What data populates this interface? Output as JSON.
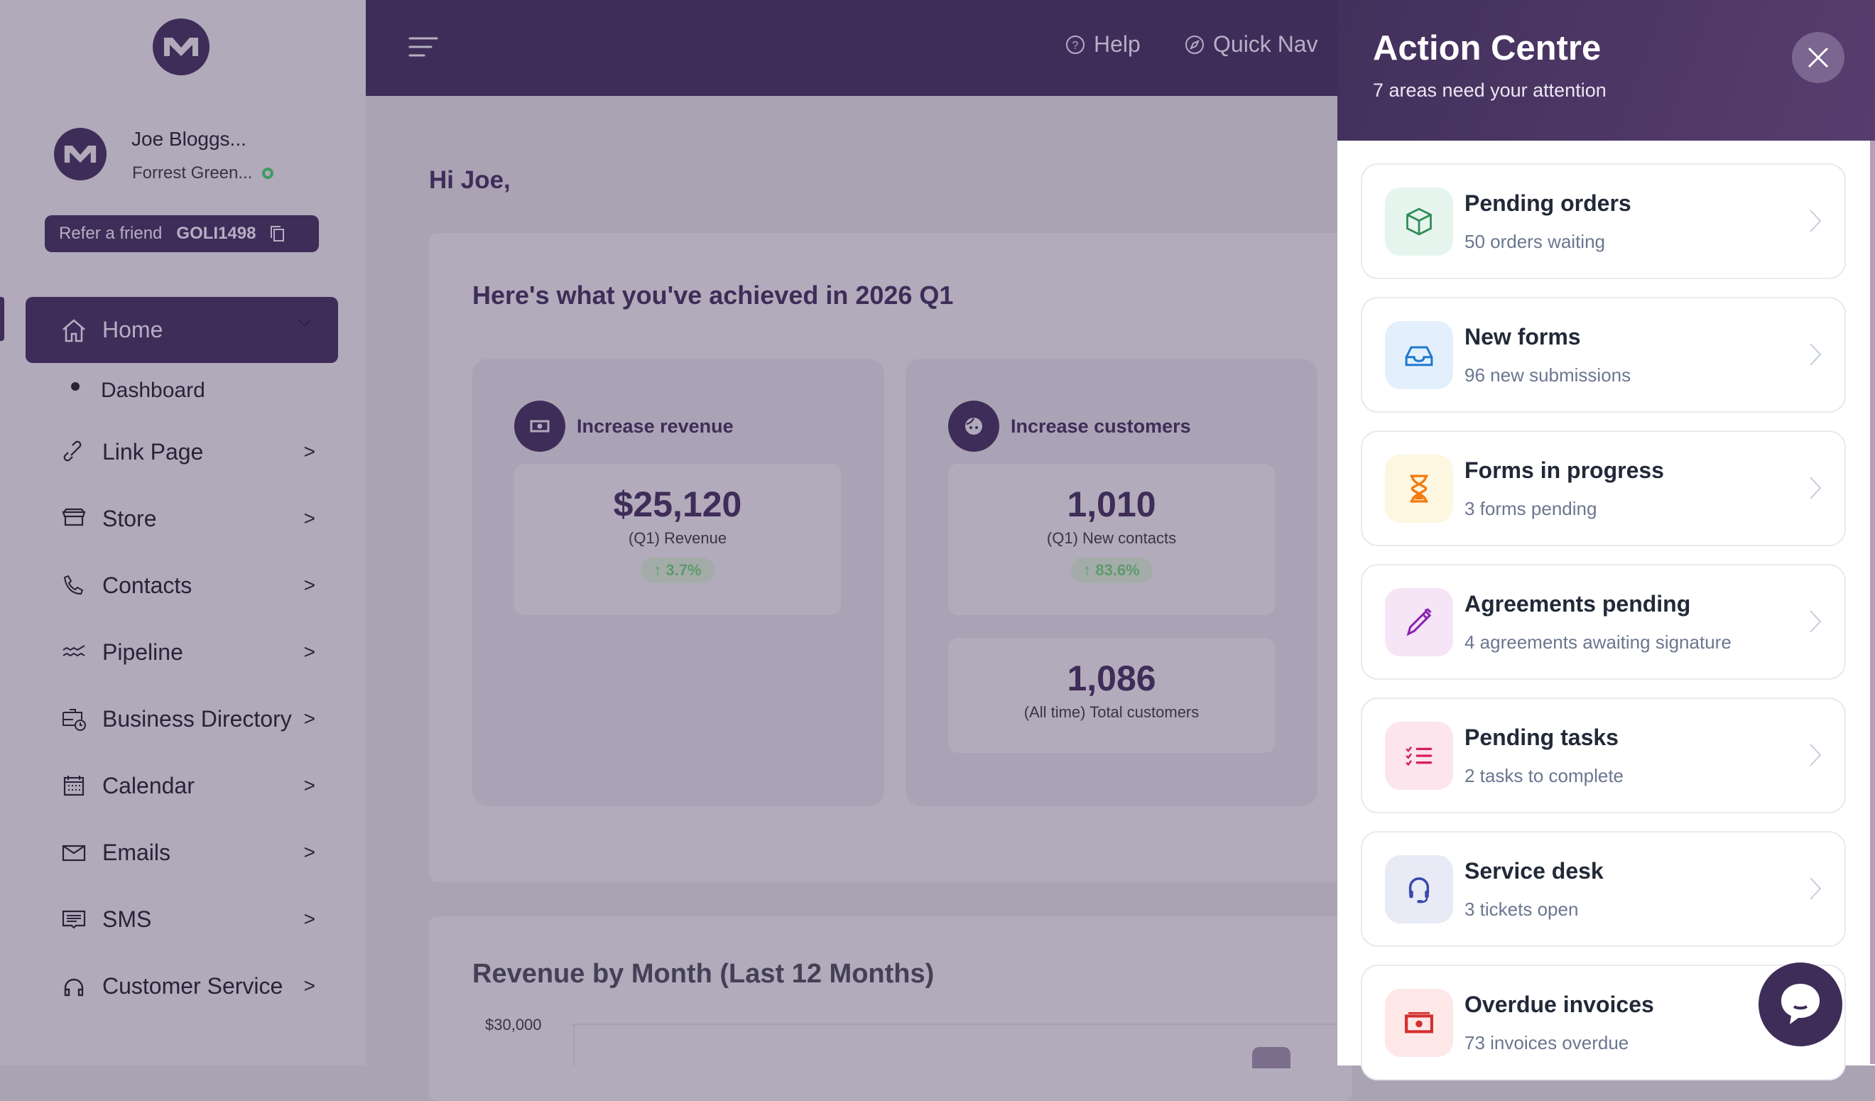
{
  "sidebar": {
    "user_name": "Joe Bloggs...",
    "user_sub": "Forrest Green...",
    "refer_label": "Refer a friend",
    "refer_code": "GOLI1498",
    "home_label": "Home",
    "dashboard_label": "Dashboard",
    "items": [
      {
        "label": "Link Page",
        "icon": "link-icon"
      },
      {
        "label": "Store",
        "icon": "store-icon"
      },
      {
        "label": "Contacts",
        "icon": "phone-icon"
      },
      {
        "label": "Pipeline",
        "icon": "pipeline-icon"
      },
      {
        "label": "Business Directory",
        "icon": "directory-icon"
      },
      {
        "label": "Calendar",
        "icon": "calendar-icon"
      },
      {
        "label": "Emails",
        "icon": "mail-icon"
      },
      {
        "label": "SMS",
        "icon": "sms-icon"
      },
      {
        "label": "Customer Service",
        "icon": "headphones-icon"
      }
    ],
    "chevron": ">"
  },
  "topbar": {
    "help_label": "Help",
    "quicknav_label": "Quick Nav"
  },
  "main": {
    "greeting": "Hi Joe,",
    "achieved_title": "Here's what you've achieved in 2026 Q1",
    "revenue": {
      "title": "Increase revenue",
      "value": "$25,120",
      "label": "(Q1) Revenue",
      "change": "↑ 3.7%"
    },
    "customers": {
      "title": "Increase customers",
      "new_value": "1,010",
      "new_label": "(Q1) New contacts",
      "change": "↑ 83.6%",
      "total_value": "1,086",
      "total_label": "(All time) Total customers"
    },
    "revenue_chart": {
      "title": "Revenue by Month (Last 12 Months)",
      "y_tick": "$30,000"
    }
  },
  "action_centre": {
    "title": "Action Centre",
    "subtitle": "7 areas need your attention",
    "items": [
      {
        "title": "Pending orders",
        "sub": "50 orders waiting",
        "icon": "box-icon",
        "bg": "#e6f4ee",
        "color": "#2f8a55"
      },
      {
        "title": "New forms",
        "sub": "96 new submissions",
        "icon": "inbox-icon",
        "bg": "#e3f0fc",
        "color": "#1f78d1"
      },
      {
        "title": "Forms in progress",
        "sub": "3 forms pending",
        "icon": "hourglass-icon",
        "bg": "#fdf6e0",
        "color": "#f27a0c"
      },
      {
        "title": "Agreements pending",
        "sub": "4 agreements awaiting signature",
        "icon": "pen-icon",
        "bg": "#f5e5f6",
        "color": "#8a24b0"
      },
      {
        "title": "Pending tasks",
        "sub": "2 tasks to complete",
        "icon": "task-list-icon",
        "bg": "#fce5ec",
        "color": "#d81b60"
      },
      {
        "title": "Service desk",
        "sub": "3 tickets open",
        "icon": "headset-icon",
        "bg": "#e8eaf6",
        "color": "#3949ab"
      },
      {
        "title": "Overdue invoices",
        "sub": "73 invoices overdue",
        "icon": "cash-icon",
        "bg": "#fde7e7",
        "color": "#d32f2f"
      }
    ]
  }
}
